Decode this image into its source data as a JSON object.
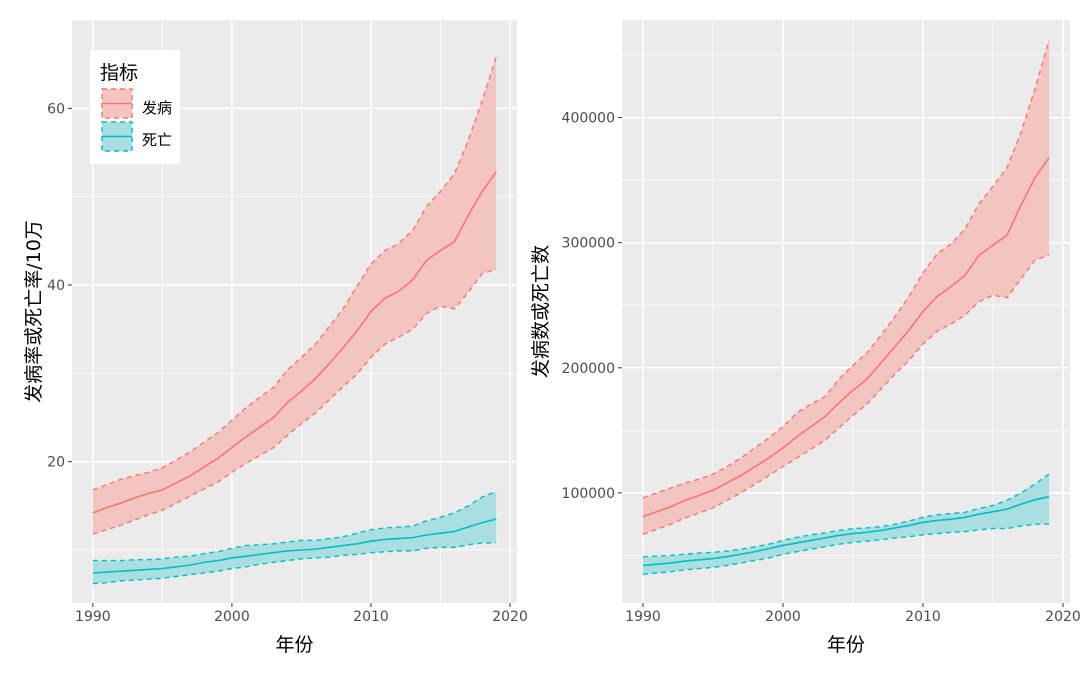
{
  "colors": {
    "panel_bg": "#EBEBEB",
    "grid": "#FFFFFF",
    "incidence": "#F8766D",
    "incidence_fill": "#F4C5C0",
    "death": "#00BFC4",
    "death_fill": "#A9DFE0",
    "axis_text": "#4D4D4D",
    "title_text": "#000000"
  },
  "legend": {
    "title": "指标",
    "items": [
      {
        "label": "发病",
        "series": "incidence"
      },
      {
        "label": "死亡",
        "series": "death"
      }
    ]
  },
  "chart_data": [
    {
      "type": "area",
      "panel": "left",
      "title": "",
      "xlabel": "年份",
      "ylabel": "发病率或死亡率/10万",
      "xlim": [
        1988.5,
        2020.5
      ],
      "ylim": [
        4,
        70
      ],
      "xticks": [
        1990,
        2000,
        2010,
        2020
      ],
      "xtick_labels": [
        "1990",
        "2000",
        "2010",
        "2020"
      ],
      "yticks": [
        20,
        40,
        60
      ],
      "ytick_labels": [
        "20",
        "40",
        "60"
      ],
      "legend_position": "top-left",
      "grid": true,
      "x": [
        1990,
        1991,
        1992,
        1993,
        1994,
        1995,
        1996,
        1997,
        1998,
        1999,
        2000,
        2001,
        2002,
        2003,
        2004,
        2005,
        2006,
        2007,
        2008,
        2009,
        2010,
        2011,
        2012,
        2013,
        2014,
        2015,
        2016,
        2017,
        2018,
        2019
      ],
      "series": [
        {
          "name": "发病",
          "key": "incidence",
          "values": [
            14.2,
            14.8,
            15.3,
            15.9,
            16.4,
            16.8,
            17.6,
            18.4,
            19.4,
            20.4,
            21.6,
            22.8,
            23.9,
            25.0,
            26.7,
            28.0,
            29.4,
            31.1,
            32.9,
            34.8,
            37.0,
            38.5,
            39.3,
            40.6,
            42.8,
            43.9,
            44.9,
            47.9,
            50.6,
            52.8
          ],
          "lower": [
            11.8,
            12.3,
            12.8,
            13.4,
            14.0,
            14.5,
            15.3,
            16.1,
            16.9,
            17.7,
            18.8,
            19.8,
            20.7,
            21.6,
            23.0,
            24.3,
            25.5,
            27.0,
            28.5,
            29.9,
            31.8,
            33.3,
            34.1,
            35.0,
            36.8,
            37.6,
            37.3,
            39.2,
            41.3,
            41.8
          ],
          "upper": [
            16.8,
            17.4,
            18.0,
            18.4,
            18.8,
            19.3,
            20.2,
            21.1,
            22.2,
            23.3,
            24.7,
            26.1,
            27.3,
            28.4,
            30.4,
            31.8,
            33.3,
            35.3,
            37.3,
            39.9,
            42.4,
            43.9,
            44.7,
            46.2,
            48.9,
            50.6,
            52.6,
            56.4,
            60.9,
            65.8
          ]
        },
        {
          "name": "死亡",
          "key": "death",
          "values": [
            7.4,
            7.5,
            7.6,
            7.7,
            7.8,
            7.9,
            8.1,
            8.3,
            8.6,
            8.8,
            9.1,
            9.3,
            9.5,
            9.7,
            9.9,
            10.0,
            10.1,
            10.3,
            10.5,
            10.7,
            11.0,
            11.2,
            11.3,
            11.4,
            11.7,
            11.9,
            12.1,
            12.6,
            13.1,
            13.5
          ],
          "lower": [
            6.2,
            6.3,
            6.5,
            6.6,
            6.7,
            6.8,
            7.0,
            7.2,
            7.4,
            7.6,
            7.9,
            8.1,
            8.4,
            8.6,
            8.8,
            9.0,
            9.1,
            9.2,
            9.4,
            9.5,
            9.7,
            9.8,
            9.9,
            9.9,
            10.2,
            10.3,
            10.3,
            10.6,
            10.8,
            10.8
          ],
          "upper": [
            8.8,
            8.8,
            8.8,
            8.9,
            8.9,
            9.0,
            9.2,
            9.3,
            9.6,
            9.8,
            10.2,
            10.5,
            10.6,
            10.7,
            10.9,
            11.1,
            11.1,
            11.3,
            11.5,
            11.9,
            12.3,
            12.5,
            12.6,
            12.7,
            13.3,
            13.7,
            14.2,
            15.0,
            16.0,
            16.6
          ]
        }
      ]
    },
    {
      "type": "area",
      "panel": "right",
      "title": "",
      "xlabel": "年份",
      "ylabel": "发病数或死亡数",
      "xlim": [
        1988.5,
        2020.5
      ],
      "ylim": [
        12000,
        478000
      ],
      "xticks": [
        1990,
        2000,
        2010,
        2020
      ],
      "xtick_labels": [
        "1990",
        "2000",
        "2010",
        "2020"
      ],
      "yticks": [
        100000,
        200000,
        300000,
        400000
      ],
      "ytick_labels": [
        "100000",
        "200000",
        "300000",
        "400000"
      ],
      "grid": true,
      "x": [
        1990,
        1991,
        1992,
        1993,
        1994,
        1995,
        1996,
        1997,
        1998,
        1999,
        2000,
        2001,
        2002,
        2003,
        2004,
        2005,
        2006,
        2007,
        2008,
        2009,
        2010,
        2011,
        2012,
        2013,
        2014,
        2015,
        2016,
        2017,
        2018,
        2019
      ],
      "series": [
        {
          "name": "发病",
          "key": "incidence",
          "values": [
            81000,
            85000,
            89000,
            94000,
            98000,
            102000,
            108000,
            114000,
            121000,
            128000,
            136000,
            145000,
            153000,
            161000,
            172000,
            182000,
            191000,
            204000,
            217000,
            230000,
            245000,
            257000,
            265000,
            274000,
            290000,
            298000,
            306000,
            330000,
            352000,
            368000
          ],
          "lower": [
            67000,
            71000,
            75000,
            80000,
            84000,
            88000,
            94000,
            100000,
            107000,
            114000,
            121000,
            128000,
            135000,
            142000,
            152000,
            162000,
            171000,
            183000,
            195000,
            206000,
            219000,
            229000,
            235000,
            242000,
            253000,
            258000,
            256000,
            271000,
            286000,
            290000
          ],
          "upper": [
            96000,
            100000,
            104000,
            108000,
            111000,
            115000,
            121000,
            128000,
            136000,
            144000,
            153000,
            164000,
            171000,
            177000,
            191000,
            202000,
            212000,
            226000,
            241000,
            257000,
            276000,
            291000,
            299000,
            311000,
            331000,
            345000,
            360000,
            388000,
            423000,
            462000
          ]
        },
        {
          "name": "死亡",
          "key": "death",
          "values": [
            42000,
            43000,
            44000,
            45500,
            46500,
            47500,
            49000,
            51000,
            53000,
            55500,
            58000,
            60000,
            62000,
            64000,
            66000,
            67500,
            68500,
            70000,
            72000,
            74000,
            76500,
            78000,
            79000,
            80500,
            83000,
            85000,
            87000,
            91000,
            94500,
            97000
          ],
          "lower": [
            35000,
            36000,
            37000,
            38500,
            39500,
            40500,
            42000,
            44000,
            46000,
            48000,
            51000,
            53000,
            55000,
            57000,
            59000,
            60500,
            61500,
            62500,
            64000,
            65000,
            66500,
            67500,
            68500,
            69000,
            70500,
            71500,
            71500,
            73500,
            75000,
            75000
          ],
          "upper": [
            49000,
            49500,
            50000,
            51000,
            52000,
            52500,
            53500,
            55000,
            57000,
            59000,
            62000,
            64500,
            66500,
            68000,
            70000,
            71500,
            72000,
            73000,
            75000,
            77500,
            80500,
            82500,
            83500,
            84500,
            87500,
            90000,
            94000,
            100000,
            107000,
            115000
          ]
        }
      ]
    }
  ]
}
